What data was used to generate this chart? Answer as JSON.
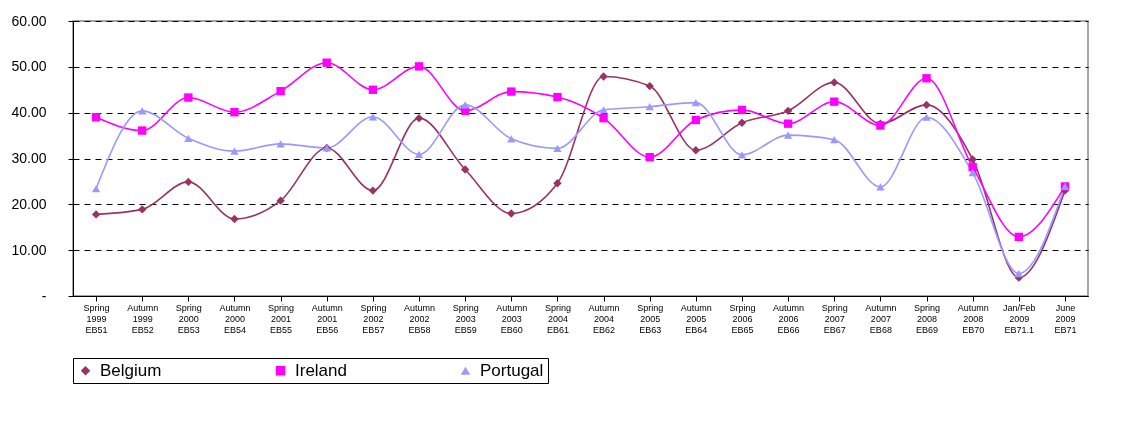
{
  "chart_data": {
    "type": "line",
    "categories": [
      "Spring 1999 EB51",
      "Autumn 1999 EB52",
      "Spring 2000 EB53",
      "Autumn 2000 EB54",
      "Spring 2001 EB55",
      "Autumn 2001 EB56",
      "Spring 2002 EB57",
      "Autumn 2002 EB58",
      "Spring 2003 EB59",
      "Autumn 2003 EB60",
      "Spring 2004 EB61",
      "Autumn 2004 EB62",
      "Spring 2005 EB63",
      "Autumn 2005 EB64",
      "Srping 2006 EB65",
      "Autumn 2006 EB66",
      "Spring 2007 EB67",
      "Autumn 2007 EB68",
      "Spring 2008 EB69",
      "Autumn 2008 EB70",
      "Jan/Feb 2009 EB71.1",
      "June 2009 EB71"
    ],
    "series": [
      {
        "name": "Belgium",
        "color": "#993366",
        "marker": "diamond",
        "values": [
          17.8,
          18.9,
          24.9,
          16.8,
          20.8,
          32.3,
          23.0,
          38.8,
          27.6,
          18.0,
          24.6,
          47.9,
          45.8,
          31.8,
          37.8,
          40.4,
          46.6,
          37.6,
          41.7,
          29.8,
          4.0,
          23.0
        ]
      },
      {
        "name": "Ireland",
        "color": "#ff00ff",
        "marker": "square",
        "values": [
          39.0,
          36.1,
          43.3,
          40.1,
          44.7,
          50.9,
          45.0,
          50.1,
          40.4,
          44.6,
          43.4,
          38.8,
          30.3,
          38.4,
          40.6,
          37.6,
          42.4,
          37.2,
          47.5,
          28.1,
          12.9,
          23.9
        ]
      },
      {
        "name": "Portugal",
        "color": "#9999ff",
        "marker": "triangle",
        "values": [
          23.4,
          40.4,
          34.4,
          31.6,
          33.2,
          32.3,
          39.1,
          30.9,
          41.7,
          34.3,
          32.2,
          40.6,
          41.3,
          42.2,
          30.8,
          35.1,
          34.1,
          23.8,
          39.0,
          26.9,
          4.9,
          23.9
        ]
      }
    ],
    "ylim": [
      0,
      60
    ],
    "yticks": [
      {
        "value": 0,
        "label": "-"
      },
      {
        "value": 10,
        "label": "10.00"
      },
      {
        "value": 20,
        "label": "20.00"
      },
      {
        "value": 30,
        "label": "30.00"
      },
      {
        "value": 40,
        "label": "40.00"
      },
      {
        "value": 50,
        "label": "50.00"
      },
      {
        "value": 60,
        "label": "60.00"
      }
    ],
    "grid": "y",
    "legend": "bottom",
    "line_style": "solid"
  }
}
